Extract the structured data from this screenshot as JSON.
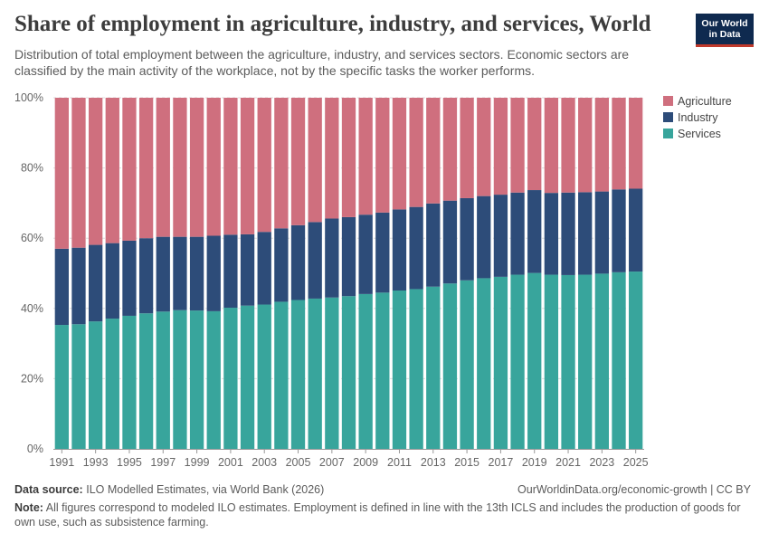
{
  "header": {
    "title": "Share of employment in agriculture, industry, and services, World",
    "subtitle": "Distribution of total employment between the agriculture, industry, and services sectors. Economic sectors are classified by the main activity of the workplace, not by the specific tasks the worker performs."
  },
  "logo": {
    "line1": "Our World",
    "line2": "in Data"
  },
  "footer": {
    "source_label": "Data source:",
    "source_text": "ILO Modelled Estimates, via World Bank (2026)",
    "url": "OurWorldinData.org/economic-growth | CC BY",
    "note_label": "Note:",
    "note_text": "All figures correspond to modeled ILO estimates. Employment is defined in line with the 13th ICLS and includes the production of goods for own use, such as subsistence farming."
  },
  "chart_data": {
    "type": "bar",
    "stacked": true,
    "x": [
      1991,
      1992,
      1993,
      1994,
      1995,
      1996,
      1997,
      1998,
      1999,
      2000,
      2001,
      2002,
      2003,
      2004,
      2005,
      2006,
      2007,
      2008,
      2009,
      2010,
      2011,
      2012,
      2013,
      2014,
      2015,
      2016,
      2017,
      2018,
      2019,
      2020,
      2021,
      2022,
      2023,
      2024,
      2025
    ],
    "x_tick_labels": [
      "1991",
      "1993",
      "1995",
      "1997",
      "1999",
      "2001",
      "2003",
      "2005",
      "2007",
      "2009",
      "2011",
      "2013",
      "2015",
      "2017",
      "2019",
      "2021",
      "2023",
      "2025"
    ],
    "y_tick_labels": [
      "0%",
      "20%",
      "40%",
      "60%",
      "80%",
      "100%"
    ],
    "ylim": [
      0,
      100
    ],
    "grid": true,
    "legend_position": "right",
    "series": [
      {
        "name": "Services",
        "color": "#38a59c",
        "values": [
          35.3,
          35.5,
          36.3,
          37.1,
          37.9,
          38.6,
          39.1,
          39.5,
          39.4,
          39.2,
          40.2,
          40.8,
          41.1,
          41.9,
          42.4,
          42.8,
          43.1,
          43.5,
          44.1,
          44.5,
          45.1,
          45.5,
          46.2,
          47.1,
          48.0,
          48.6,
          49.0,
          49.6,
          50.1,
          49.6,
          49.5,
          49.6,
          49.9,
          50.3,
          50.5
        ]
      },
      {
        "name": "Industry",
        "color": "#2d4c79",
        "values": [
          21.7,
          21.8,
          21.8,
          21.5,
          21.4,
          21.4,
          21.3,
          20.9,
          21.0,
          21.5,
          20.8,
          20.3,
          20.7,
          20.9,
          21.3,
          21.8,
          22.5,
          22.5,
          22.6,
          22.8,
          23.1,
          23.4,
          23.7,
          23.6,
          23.4,
          23.4,
          23.4,
          23.4,
          23.6,
          23.3,
          23.5,
          23.5,
          23.4,
          23.6,
          23.6
        ]
      },
      {
        "name": "Agriculture",
        "color": "#cf6f7e",
        "values": [
          43.0,
          42.7,
          41.9,
          41.4,
          40.7,
          40.0,
          39.6,
          39.6,
          39.6,
          39.3,
          39.0,
          38.9,
          38.2,
          37.2,
          36.3,
          35.4,
          34.4,
          34.0,
          33.3,
          32.7,
          31.8,
          31.1,
          30.1,
          29.3,
          28.6,
          28.0,
          27.6,
          27.0,
          26.3,
          27.1,
          27.0,
          26.9,
          26.7,
          26.1,
          25.9
        ]
      }
    ],
    "legend": [
      "Agriculture",
      "Industry",
      "Services"
    ]
  }
}
